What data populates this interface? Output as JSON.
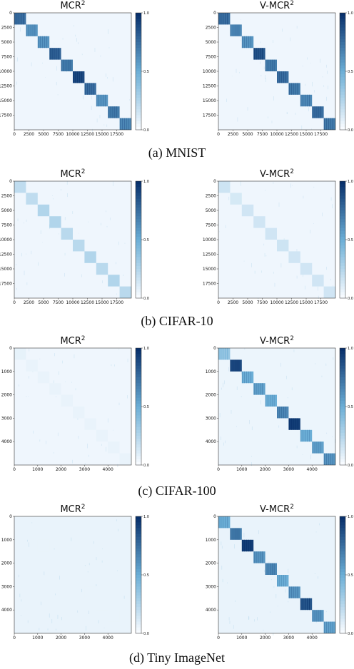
{
  "colors": {
    "cmap_low": "#f7fbff",
    "cmap_high": "#08306b"
  },
  "panels": [
    {
      "caption": "(a) MNIST",
      "charts": [
        {
          "title_main": "MCR",
          "title_sup": "2",
          "ticks": [
            "0",
            "2500",
            "5000",
            "7500",
            "10000",
            "12500",
            "15000",
            "17500"
          ],
          "xticks": [
            "0",
            "2500",
            "5000",
            "7500",
            "10000",
            "12500",
            "15000",
            "17500"
          ],
          "blocks": [
            0.75,
            0.6,
            0.6,
            0.8,
            0.7,
            0.9,
            0.75,
            0.6,
            0.7,
            0.65
          ],
          "background": 0.03
        },
        {
          "title_main": "V-MCR",
          "title_sup": "2",
          "ticks": [
            "0",
            "2500",
            "5000",
            "7500",
            "10000",
            "12500",
            "15000",
            "17500"
          ],
          "xticks": [
            "0",
            "2500",
            "5000",
            "7500",
            "10000",
            "12500",
            "15000",
            "17500"
          ],
          "blocks": [
            0.75,
            0.65,
            0.6,
            0.85,
            0.7,
            0.75,
            0.7,
            0.65,
            0.75,
            0.7
          ],
          "background": 0.03
        }
      ]
    },
    {
      "caption": "(b) CIFAR-10",
      "charts": [
        {
          "title_main": "MCR",
          "title_sup": "2",
          "ticks": [
            "0",
            "2500",
            "5000",
            "7500",
            "10000",
            "12500",
            "15000",
            "17500"
          ],
          "xticks": [
            "0",
            "2500",
            "5000",
            "7500",
            "10000",
            "12500",
            "15000",
            "17500"
          ],
          "blocks": [
            0.2,
            0.2,
            0.25,
            0.25,
            0.22,
            0.22,
            0.25,
            0.22,
            0.25,
            0.22
          ],
          "background": 0.03
        },
        {
          "title_main": "V-MCR",
          "title_sup": "2",
          "ticks": [
            "0",
            "2500",
            "5000",
            "7500",
            "10000",
            "12500",
            "15000",
            "17500"
          ],
          "xticks": [
            "0",
            "2500",
            "5000",
            "7500",
            "10000",
            "12500",
            "15000",
            "17500"
          ],
          "blocks": [
            0.15,
            0.12,
            0.14,
            0.14,
            0.14,
            0.15,
            0.14,
            0.14,
            0.14,
            0.14
          ],
          "background": 0.03
        }
      ]
    },
    {
      "caption": "(c) CIFAR-100",
      "charts": [
        {
          "title_main": "MCR",
          "title_sup": "2",
          "ticks": [
            "0",
            "1000",
            "2000",
            "3000",
            "4000"
          ],
          "xticks": [
            "0",
            "1000",
            "2000",
            "3000",
            "4000"
          ],
          "blocks": [
            0.06,
            0.05,
            0.05,
            0.05,
            0.05,
            0.05,
            0.05,
            0.05,
            0.05,
            0.05
          ],
          "background": 0.03
        },
        {
          "title_main": "V-MCR",
          "title_sup": "2",
          "ticks": [
            "0",
            "1000",
            "2000",
            "3000",
            "4000"
          ],
          "xticks": [
            "0",
            "1000",
            "2000",
            "3000",
            "4000"
          ],
          "blocks": [
            0.35,
            0.9,
            0.5,
            0.55,
            0.5,
            0.65,
            0.95,
            0.5,
            0.55,
            0.6
          ],
          "background": 0.04
        }
      ]
    },
    {
      "caption": "(d) Tiny ImageNet",
      "charts": [
        {
          "title_main": "MCR",
          "title_sup": "2",
          "ticks": [
            "0",
            "1000",
            "2000",
            "3000",
            "4000"
          ],
          "xticks": [
            "0",
            "1000",
            "2000",
            "3000",
            "4000"
          ],
          "blocks": [
            0.05,
            0.05,
            0.05,
            0.05,
            0.05,
            0.05,
            0.05,
            0.05,
            0.05,
            0.05
          ],
          "background": 0.05
        },
        {
          "title_main": "V-MCR",
          "title_sup": "2",
          "ticks": [
            "0",
            "1000",
            "2000",
            "3000",
            "4000"
          ],
          "xticks": [
            "0",
            "1000",
            "2000",
            "3000",
            "4000"
          ],
          "blocks": [
            0.5,
            0.7,
            0.95,
            0.6,
            0.65,
            0.5,
            0.6,
            0.85,
            0.6,
            0.55
          ],
          "background": 0.05
        }
      ]
    }
  ],
  "colorbar": {
    "ticks": [
      "0.0",
      "0.5",
      "1.0"
    ]
  },
  "chart_data": [
    {
      "type": "heatmap",
      "panel": "(a) MNIST",
      "title": "MCR²",
      "n_classes": 10,
      "axis_range": [
        0,
        20000
      ],
      "value_range": [
        0.0,
        1.0
      ],
      "diagonal_block_values": [
        0.75,
        0.6,
        0.6,
        0.8,
        0.7,
        0.9,
        0.75,
        0.6,
        0.7,
        0.65
      ],
      "off_diagonal": 0.03
    },
    {
      "type": "heatmap",
      "panel": "(a) MNIST",
      "title": "V-MCR²",
      "n_classes": 10,
      "axis_range": [
        0,
        20000
      ],
      "value_range": [
        0.0,
        1.0
      ],
      "diagonal_block_values": [
        0.75,
        0.65,
        0.6,
        0.85,
        0.7,
        0.75,
        0.7,
        0.65,
        0.75,
        0.7
      ],
      "off_diagonal": 0.03
    },
    {
      "type": "heatmap",
      "panel": "(b) CIFAR-10",
      "title": "MCR²",
      "n_classes": 10,
      "axis_range": [
        0,
        20000
      ],
      "value_range": [
        0.0,
        1.0
      ],
      "diagonal_block_values": [
        0.2,
        0.2,
        0.25,
        0.25,
        0.22,
        0.22,
        0.25,
        0.22,
        0.25,
        0.22
      ],
      "off_diagonal": 0.03
    },
    {
      "type": "heatmap",
      "panel": "(b) CIFAR-10",
      "title": "V-MCR²",
      "n_classes": 10,
      "axis_range": [
        0,
        20000
      ],
      "value_range": [
        0.0,
        1.0
      ],
      "diagonal_block_values": [
        0.15,
        0.12,
        0.14,
        0.14,
        0.14,
        0.15,
        0.14,
        0.14,
        0.14,
        0.14
      ],
      "off_diagonal": 0.03
    },
    {
      "type": "heatmap",
      "panel": "(c) CIFAR-100",
      "title": "MCR²",
      "n_classes": 10,
      "axis_range": [
        0,
        5000
      ],
      "value_range": [
        0.0,
        1.0
      ],
      "diagonal_block_values": [
        0.06,
        0.05,
        0.05,
        0.05,
        0.05,
        0.05,
        0.05,
        0.05,
        0.05,
        0.05
      ],
      "off_diagonal": 0.03
    },
    {
      "type": "heatmap",
      "panel": "(c) CIFAR-100",
      "title": "V-MCR²",
      "n_classes": 10,
      "axis_range": [
        0,
        5000
      ],
      "value_range": [
        0.0,
        1.0
      ],
      "diagonal_block_values": [
        0.35,
        0.9,
        0.5,
        0.55,
        0.5,
        0.65,
        0.95,
        0.5,
        0.55,
        0.6
      ],
      "off_diagonal": 0.04
    },
    {
      "type": "heatmap",
      "panel": "(d) Tiny ImageNet",
      "title": "MCR²",
      "n_classes": 10,
      "axis_range": [
        0,
        5000
      ],
      "value_range": [
        0.0,
        1.0
      ],
      "diagonal_block_values": [
        0.05,
        0.05,
        0.05,
        0.05,
        0.05,
        0.05,
        0.05,
        0.05,
        0.05,
        0.05
      ],
      "off_diagonal": 0.05
    },
    {
      "type": "heatmap",
      "panel": "(d) Tiny ImageNet",
      "title": "V-MCR²",
      "n_classes": 10,
      "axis_range": [
        0,
        5000
      ],
      "value_range": [
        0.0,
        1.0
      ],
      "diagonal_block_values": [
        0.5,
        0.7,
        0.95,
        0.6,
        0.65,
        0.5,
        0.6,
        0.85,
        0.6,
        0.55
      ],
      "off_diagonal": 0.05
    }
  ]
}
